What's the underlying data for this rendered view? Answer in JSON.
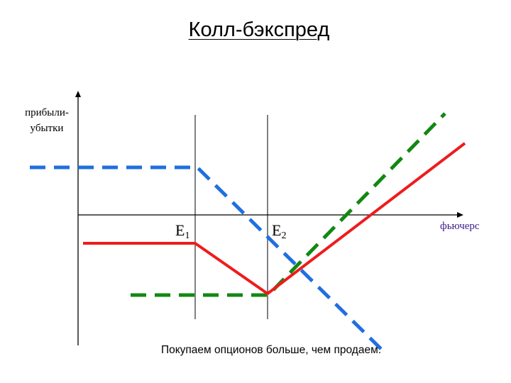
{
  "title": "Колл-бэкспред",
  "axes": {
    "y_label_line1": "прибыли-",
    "y_label_line2": "убытки",
    "x_label": "фьючерс"
  },
  "strikes": {
    "e1_letter": "E",
    "e1_sub": "1",
    "e2_letter": "E",
    "e2_sub": "2"
  },
  "caption": "Покупаем опционов больше, чем продаем.",
  "colors": {
    "axis": "#000000",
    "x_label": "#3a1a8a",
    "net_payoff": "#ee1c1c",
    "short_call_payoff": "#1f6fe0",
    "long_calls_payoff": "#118811"
  },
  "legend_semantics": {
    "net_payoff": "solid red",
    "short_call_payoff": "dashed blue",
    "long_calls_payoff": "dashed green"
  }
}
